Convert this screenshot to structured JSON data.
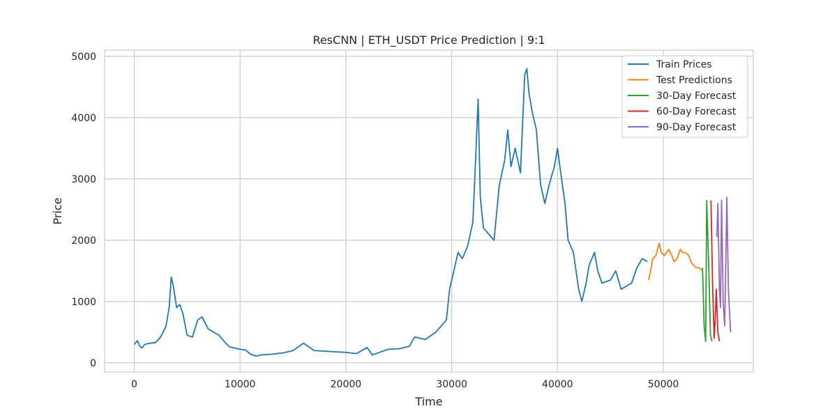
{
  "chart_data": {
    "type": "line",
    "title": "ResCNN | ETH_USDT Price Prediction | 9:1",
    "xlabel": "Time",
    "ylabel": "Price",
    "xlim": [
      -2800,
      58500
    ],
    "ylim": [
      -150,
      5100
    ],
    "xticks": [
      0,
      10000,
      20000,
      30000,
      40000,
      50000
    ],
    "xtick_labels": [
      "0",
      "10000",
      "20000",
      "30000",
      "40000",
      "50000"
    ],
    "yticks": [
      0,
      1000,
      2000,
      3000,
      4000,
      5000
    ],
    "ytick_labels": [
      "0",
      "1000",
      "2000",
      "3000",
      "4000",
      "5000"
    ],
    "grid": true,
    "legend_position": "top-right",
    "series": [
      {
        "name": "Train Prices",
        "color": "#1f77b4",
        "points": [
          [
            0,
            300
          ],
          [
            300,
            360
          ],
          [
            500,
            280
          ],
          [
            700,
            240
          ],
          [
            1000,
            300
          ],
          [
            1500,
            320
          ],
          [
            2000,
            330
          ],
          [
            2500,
            420
          ],
          [
            3000,
            600
          ],
          [
            3300,
            900
          ],
          [
            3500,
            1400
          ],
          [
            3700,
            1250
          ],
          [
            4000,
            900
          ],
          [
            4300,
            950
          ],
          [
            4600,
            800
          ],
          [
            5000,
            450
          ],
          [
            5500,
            420
          ],
          [
            6000,
            700
          ],
          [
            6400,
            750
          ],
          [
            7000,
            550
          ],
          [
            8000,
            450
          ],
          [
            8500,
            350
          ],
          [
            9000,
            260
          ],
          [
            10000,
            220
          ],
          [
            10500,
            210
          ],
          [
            11000,
            140
          ],
          [
            11500,
            110
          ],
          [
            12000,
            130
          ],
          [
            13000,
            140
          ],
          [
            14000,
            160
          ],
          [
            15000,
            200
          ],
          [
            16000,
            320
          ],
          [
            16500,
            260
          ],
          [
            17000,
            200
          ],
          [
            18000,
            190
          ],
          [
            19000,
            180
          ],
          [
            20000,
            170
          ],
          [
            21000,
            150
          ],
          [
            22000,
            250
          ],
          [
            22500,
            130
          ],
          [
            23000,
            160
          ],
          [
            24000,
            220
          ],
          [
            25000,
            230
          ],
          [
            26000,
            270
          ],
          [
            26500,
            420
          ],
          [
            27500,
            380
          ],
          [
            28500,
            500
          ],
          [
            29500,
            700
          ],
          [
            29800,
            1200
          ],
          [
            30200,
            1500
          ],
          [
            30600,
            1800
          ],
          [
            31000,
            1700
          ],
          [
            31500,
            1900
          ],
          [
            32000,
            2300
          ],
          [
            32300,
            3500
          ],
          [
            32500,
            4300
          ],
          [
            32700,
            2700
          ],
          [
            33000,
            2200
          ],
          [
            33500,
            2100
          ],
          [
            34000,
            2000
          ],
          [
            34500,
            2900
          ],
          [
            35000,
            3300
          ],
          [
            35300,
            3800
          ],
          [
            35600,
            3200
          ],
          [
            36000,
            3500
          ],
          [
            36500,
            3100
          ],
          [
            36900,
            4700
          ],
          [
            37100,
            4800
          ],
          [
            37300,
            4400
          ],
          [
            37600,
            4100
          ],
          [
            38000,
            3800
          ],
          [
            38400,
            2900
          ],
          [
            38800,
            2600
          ],
          [
            39200,
            2900
          ],
          [
            39700,
            3200
          ],
          [
            40000,
            3500
          ],
          [
            40300,
            3100
          ],
          [
            40700,
            2600
          ],
          [
            41000,
            2000
          ],
          [
            41500,
            1800
          ],
          [
            42000,
            1200
          ],
          [
            42300,
            1000
          ],
          [
            42700,
            1300
          ],
          [
            43000,
            1600
          ],
          [
            43500,
            1800
          ],
          [
            43800,
            1500
          ],
          [
            44200,
            1300
          ],
          [
            45000,
            1350
          ],
          [
            45500,
            1500
          ],
          [
            46000,
            1200
          ],
          [
            47000,
            1300
          ],
          [
            47500,
            1550
          ],
          [
            48000,
            1700
          ],
          [
            48500,
            1650
          ]
        ]
      },
      {
        "name": "Test Predictions",
        "color": "#ff7f0e",
        "points": [
          [
            48600,
            1350
          ],
          [
            48800,
            1500
          ],
          [
            49000,
            1700
          ],
          [
            49300,
            1750
          ],
          [
            49600,
            1950
          ],
          [
            49800,
            1800
          ],
          [
            50100,
            1750
          ],
          [
            50500,
            1850
          ],
          [
            50800,
            1750
          ],
          [
            51000,
            1650
          ],
          [
            51300,
            1700
          ],
          [
            51600,
            1850
          ],
          [
            51800,
            1800
          ],
          [
            52100,
            1800
          ],
          [
            52400,
            1750
          ],
          [
            52600,
            1650
          ],
          [
            52800,
            1600
          ],
          [
            53100,
            1550
          ],
          [
            53400,
            1550
          ],
          [
            53700,
            1500
          ]
        ]
      },
      {
        "name": "30-Day Forecast",
        "color": "#2ca02c",
        "points": [
          [
            53700,
            1550
          ],
          [
            53850,
            600
          ],
          [
            54000,
            350
          ],
          [
            54100,
            2650
          ],
          [
            54300,
            1500
          ],
          [
            54450,
            450
          ],
          [
            54600,
            350
          ]
        ]
      },
      {
        "name": "60-Day Forecast",
        "color": "#d62728",
        "points": [
          [
            54500,
            2650
          ],
          [
            54650,
            1300
          ],
          [
            54800,
            400
          ],
          [
            54900,
            700
          ],
          [
            55000,
            1200
          ],
          [
            55150,
            500
          ],
          [
            55300,
            350
          ]
        ]
      },
      {
        "name": "90-Day Forecast",
        "color": "#9467bd",
        "points": [
          [
            55050,
            2050
          ],
          [
            55150,
            2600
          ],
          [
            55300,
            1200
          ],
          [
            55400,
            900
          ],
          [
            55500,
            2650
          ],
          [
            55650,
            1000
          ],
          [
            55800,
            600
          ],
          [
            56000,
            2700
          ],
          [
            56150,
            1200
          ],
          [
            56350,
            500
          ]
        ]
      }
    ]
  }
}
